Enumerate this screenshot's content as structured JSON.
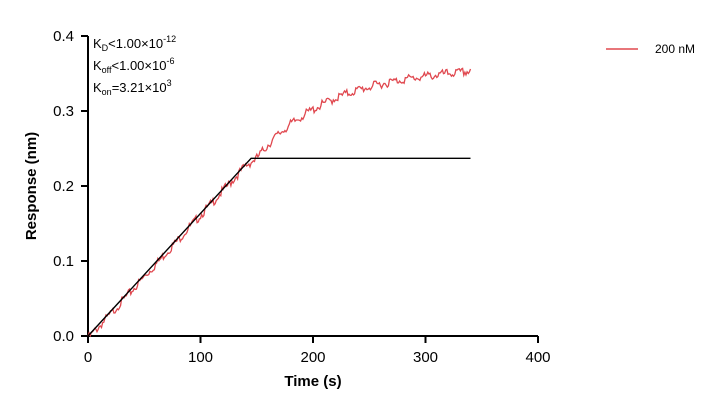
{
  "chart_data": {
    "type": "line",
    "xlabel": "Time (s)",
    "ylabel": "Response (nm)",
    "xlim": [
      0,
      400
    ],
    "ylim": [
      0,
      0.4
    ],
    "x_ticks": [
      0,
      100,
      200,
      300,
      400
    ],
    "x_tick_labels": [
      "0",
      "100",
      "200",
      "300",
      "400"
    ],
    "y_ticks": [
      0.0,
      0.1,
      0.2,
      0.3,
      0.4
    ],
    "y_tick_labels": [
      "0.0",
      "0.1",
      "0.2",
      "0.3",
      "0.4"
    ],
    "grid": false,
    "legend_position": "top-right",
    "annotations": {
      "kd": {
        "base": "K",
        "sub": "D",
        "rel": "<",
        "mantissa": "1.00×10",
        "exp": "-12"
      },
      "koff": {
        "base": "K",
        "sub": "off",
        "rel": "<",
        "mantissa": "1.00×10",
        "exp": "-6"
      },
      "kon": {
        "base": "K",
        "sub": "on",
        "rel": "=",
        "mantissa": "3.21×10",
        "exp": "3"
      }
    },
    "series": [
      {
        "name": "200 nM",
        "color": "#e0484f",
        "x": [
          0,
          10,
          20,
          30,
          40,
          50,
          60,
          70,
          80,
          90,
          100,
          110,
          120,
          130,
          140,
          150,
          160,
          170,
          180,
          190,
          200,
          210,
          220,
          230,
          240,
          250,
          260,
          270,
          280,
          290,
          300,
          310,
          320,
          330,
          340
        ],
        "y": [
          0.0,
          0.016,
          0.032,
          0.049,
          0.065,
          0.082,
          0.098,
          0.115,
          0.131,
          0.148,
          0.164,
          0.18,
          0.197,
          0.213,
          0.23,
          0.24,
          0.258,
          0.273,
          0.285,
          0.296,
          0.305,
          0.313,
          0.32,
          0.326,
          0.331,
          0.335,
          0.339,
          0.342,
          0.345,
          0.347,
          0.349,
          0.351,
          0.353,
          0.354,
          0.356
        ]
      },
      {
        "color": "#000000",
        "x": [
          0,
          145,
          340
        ],
        "y": [
          0.0,
          0.237,
          0.237
        ]
      }
    ]
  }
}
